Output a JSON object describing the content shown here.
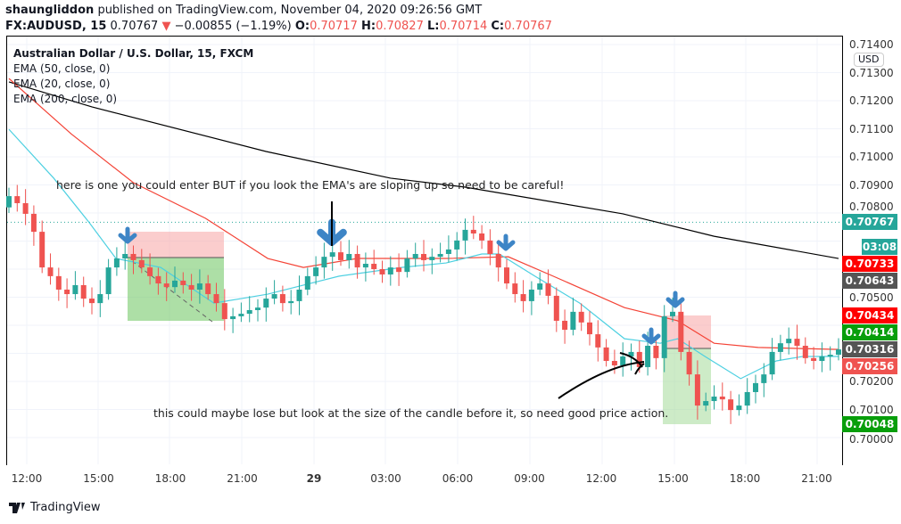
{
  "header": {
    "author": "shaungliddon",
    "published": "published on TradingView.com, November 04, 2020 09:26:56 GMT",
    "symbol": "FX:AUDUSD, 15",
    "last": "0.70767",
    "change": "−0.00855 (−1.19%)",
    "o_label": "O:",
    "o": "0.70717",
    "h_label": "H:",
    "h": "0.70827",
    "l_label": "L:",
    "l": "0.70714",
    "c_label": "C:",
    "c": "0.70767"
  },
  "legend": {
    "title": "Australian Dollar / U.S. Dollar, 15, FXCM",
    "ema1": "EMA (50, close, 0)",
    "ema2": "EMA (20, close, 0)",
    "ema3": "EMA (200, close, 0)"
  },
  "currency": "USD",
  "annotations": {
    "top": "here is one you could enter BUT if you look the EMA's are sloping up so need to be careful!",
    "bottom": "this could maybe lose but look at the size of the candle before it, so need good price action."
  },
  "price_axis": [
    "0.71400",
    "0.71300",
    "0.71200",
    "0.71100",
    "0.71000",
    "0.70900",
    "0.70800",
    "0.70500",
    "0.70200",
    "0.70100",
    "0.70000"
  ],
  "price_tags": [
    {
      "text": "0.70767",
      "price": 0.70767,
      "color": "#26a69a"
    },
    {
      "text": "03:08",
      "price": 0.7068,
      "color": "#26a69a"
    },
    {
      "text": "0.70733",
      "price": 0.70733,
      "color": "#ff0000"
    },
    {
      "text": "0.70643",
      "price": 0.70643,
      "color": "#555555"
    },
    {
      "text": "0.70434",
      "price": 0.70434,
      "color": "#ff0000"
    },
    {
      "text": "0.70414",
      "price": 0.70414,
      "color": "#089e0b"
    },
    {
      "text": "0.70316",
      "price": 0.70316,
      "color": "#555555"
    },
    {
      "text": "0.70256",
      "price": 0.70256,
      "color": "#ef5350"
    },
    {
      "text": "0.70048",
      "price": 0.70048,
      "color": "#089e0b"
    }
  ],
  "time_axis": [
    "12:00",
    "15:00",
    "18:00",
    "21:00",
    "29",
    "03:00",
    "06:00",
    "09:00",
    "12:00",
    "15:00",
    "18:00",
    "21:00"
  ],
  "colors": {
    "up": "#26a69a",
    "down": "#ef5350",
    "ema50": "#f44336",
    "ema20": "#4dd0e1",
    "ema200": "#000000",
    "arrow": "#3d85c6"
  },
  "chart_data": {
    "type": "candlestick",
    "ylim": [
      0.6996,
      0.7144
    ],
    "grid": true,
    "closes": [
      0.7086,
      0.70835,
      0.70797,
      0.70733,
      0.70606,
      0.70575,
      0.70527,
      0.70511,
      0.70543,
      0.70495,
      0.70479,
      0.70511,
      0.70606,
      0.70638,
      0.70654,
      0.70632,
      0.70606,
      0.70575,
      0.70549,
      0.70536,
      0.70559,
      0.70543,
      0.70527,
      0.70549,
      0.70511,
      0.70479,
      0.70422,
      0.70432,
      0.70441,
      0.70454,
      0.70463,
      0.70495,
      0.70511,
      0.70479,
      0.70486,
      0.70527,
      0.70575,
      0.70606,
      0.70644,
      0.7066,
      0.70632,
      0.70654,
      0.70606,
      0.70619,
      0.706,
      0.70581,
      0.70606,
      0.7059,
      0.70638,
      0.70654,
      0.70632,
      0.70644,
      0.70654,
      0.7067,
      0.70702,
      0.7074,
      0.70727,
      0.70702,
      0.70654,
      0.70606,
      0.70549,
      0.70511,
      0.70486,
      0.70527,
      0.70549,
      0.70505,
      0.70416,
      0.70384,
      0.70448,
      0.7041,
      0.70368,
      0.70321,
      0.70273,
      0.70257,
      0.70289,
      0.70305,
      0.70251,
      0.70327,
      0.70283,
      0.70432,
      0.70448,
      0.70305,
      0.70225,
      0.70114,
      0.7013,
      0.70146,
      0.70136,
      0.70098,
      0.70114,
      0.70162,
      0.70194,
      0.70225,
      0.70305,
      0.70336,
      0.70352,
      0.70327,
      0.70283,
      0.70273,
      0.70289,
      0.70295,
      0.70314
    ],
    "ema200": [
      [
        0,
        0.71267
      ],
      [
        10,
        0.71178
      ],
      [
        31,
        0.71019
      ],
      [
        46,
        0.70924
      ],
      [
        55,
        0.70892
      ],
      [
        74,
        0.70797
      ],
      [
        85,
        0.70717
      ],
      [
        100,
        0.70638
      ]
    ],
    "ema50": [
      [
        0,
        0.71279
      ],
      [
        7.5,
        0.71082
      ],
      [
        15,
        0.70908
      ],
      [
        23.7,
        0.70781
      ],
      [
        31.2,
        0.70638
      ],
      [
        35.5,
        0.70606
      ],
      [
        42,
        0.70638
      ],
      [
        52.7,
        0.70638
      ],
      [
        60.2,
        0.70644
      ],
      [
        65.6,
        0.70575
      ],
      [
        74.2,
        0.70463
      ],
      [
        80.6,
        0.70416
      ],
      [
        85,
        0.70336
      ],
      [
        90.3,
        0.70321
      ],
      [
        100,
        0.70314
      ]
    ],
    "ema20": [
      [
        0,
        0.71098
      ],
      [
        5.4,
        0.70924
      ],
      [
        9.7,
        0.70765
      ],
      [
        12.9,
        0.70638
      ],
      [
        18.3,
        0.70606
      ],
      [
        24.7,
        0.70479
      ],
      [
        28,
        0.70495
      ],
      [
        31.2,
        0.70511
      ],
      [
        35.5,
        0.70543
      ],
      [
        39.8,
        0.70575
      ],
      [
        47.3,
        0.70606
      ],
      [
        52.7,
        0.70622
      ],
      [
        57,
        0.70654
      ],
      [
        59.1,
        0.70654
      ],
      [
        63.4,
        0.70575
      ],
      [
        68.8,
        0.70479
      ],
      [
        74.2,
        0.70352
      ],
      [
        78.5,
        0.70336
      ],
      [
        80.6,
        0.70352
      ],
      [
        83.9,
        0.70289
      ],
      [
        88.2,
        0.7021
      ],
      [
        92.5,
        0.70273
      ],
      [
        95.7,
        0.70289
      ],
      [
        100,
        0.70289
      ]
    ]
  }
}
